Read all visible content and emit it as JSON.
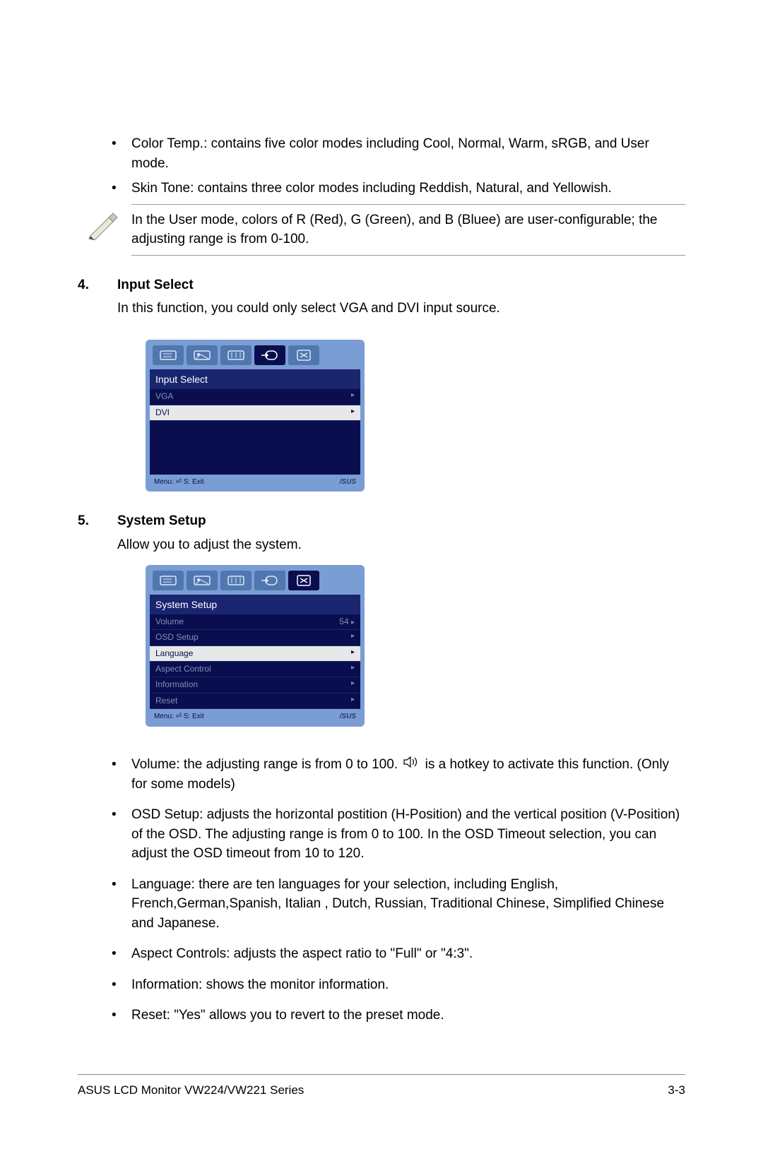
{
  "top_bullets": [
    "Color Temp.: contains five color modes including Cool, Normal, Warm, sRGB, and User mode.",
    "Skin Tone: contains three color modes including Reddish, Natural, and Yellowish."
  ],
  "note_text": "In the User mode, colors of R (Red), G (Green), and B (Bluee) are user-configurable; the adjusting range is from 0-100.",
  "section4": {
    "num": "4.",
    "title": "Input Select",
    "body": "In this function, you could only select  VGA  and DVI input source."
  },
  "osd1": {
    "header": "Input Select",
    "items": [
      {
        "label": "VGA",
        "hl": false
      },
      {
        "label": "DVI",
        "hl": true
      }
    ],
    "footer_left": "Menu: ⏎    S: Exit",
    "footer_right": "/SUS",
    "active_tab": 3,
    "colors": {
      "frame": "#7a9dd4",
      "header_bg": "#1a2570",
      "body_bg": "#0a0e4e",
      "hl_bg": "#e8e8e8",
      "text_dim": "#8090b8"
    }
  },
  "section5": {
    "num": "5.",
    "title": "System Setup",
    "body": "Allow you to adjust the system."
  },
  "osd2": {
    "header": "System Setup",
    "items": [
      {
        "label": "Volume",
        "value": "54",
        "hl": false
      },
      {
        "label": "OSD Setup",
        "hl": false
      },
      {
        "label": "Language",
        "hl": true
      },
      {
        "label": "Aspect Control",
        "hl": false
      },
      {
        "label": "Information",
        "hl": false
      },
      {
        "label": "Reset",
        "hl": false
      }
    ],
    "footer_left": "Menu: ⏎    S: Exit",
    "footer_right": "/SUS",
    "active_tab": 4
  },
  "bottom_bullets": [
    {
      "pre": "Volume: the adjusting range is from 0 to 100. ",
      "icon": true,
      "post": " is a hotkey to activate this function. (Only for some models)"
    },
    {
      "pre": "OSD Setup: adjusts the horizontal postition (H-Position) and the vertical position (V-Position) of the OSD. The adjusting range is from 0 to 100. In the OSD Timeout selection, you can adjust the OSD timeout from 10 to 120."
    },
    {
      "pre": "Language: there are ten languages for your selection, including English, French,German,Spanish, Italian , Dutch,  Russian, Traditional Chinese, Simplified Chinese and Japanese."
    },
    {
      "pre": "Aspect Controls: adjusts the aspect ratio to \"Full\" or \"4:3\"."
    },
    {
      "pre": "Information: shows the monitor information."
    },
    {
      "pre": "Reset: \"Yes\" allows you to revert to the preset mode."
    }
  ],
  "footer": {
    "left": "ASUS LCD Monitor VW224/VW221 Series",
    "right": "3-3"
  }
}
